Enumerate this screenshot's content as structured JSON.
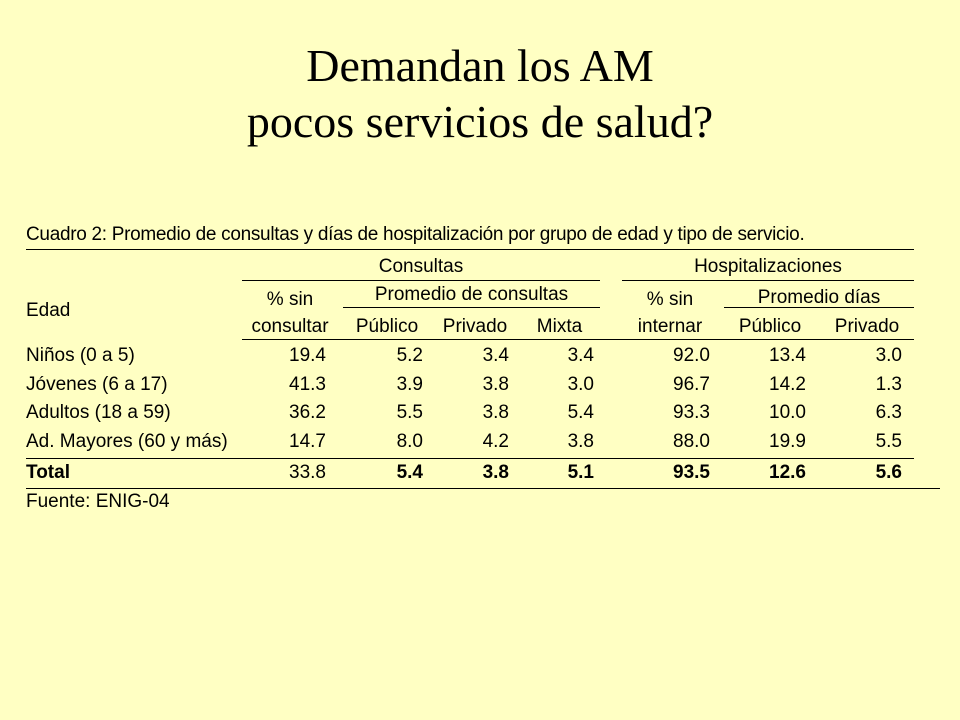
{
  "slide": {
    "title_line1": "Demandan los AM",
    "title_line2": "pocos servicios de salud?"
  },
  "table": {
    "caption": "Cuadro 2:  Promedio de consultas y días de hospitalización por grupo de edad y tipo de servicio.",
    "group_consultas": "Consultas",
    "group_hospitalizaciones": "Hospitalizaciones",
    "sub_promedio_consultas": "Promedio de consultas",
    "sub_promedio_dias": "Promedio días",
    "col_edad": "Edad",
    "col_sin_consultar_1": "% sin",
    "col_sin_consultar_2": "consultar",
    "col_sin_internar_1": "% sin",
    "col_sin_internar_2": "internar",
    "col_publico": "Público",
    "col_privado": "Privado",
    "col_mixta": "Mixta",
    "col_hosp_publico": "Público",
    "col_hosp_privado": "Privado",
    "rows": [
      {
        "label": "Niños (0 a 5)",
        "values": [
          "19.4",
          "5.2",
          "3.4",
          "3.4",
          "92.0",
          "13.4",
          "3.0"
        ]
      },
      {
        "label": "Jóvenes (6 a 17)",
        "values": [
          "41.3",
          "3.9",
          "3.8",
          "3.0",
          "96.7",
          "14.2",
          "1.3"
        ]
      },
      {
        "label": "Adultos (18 a 59)",
        "values": [
          "36.2",
          "5.5",
          "3.8",
          "5.4",
          "93.3",
          "10.0",
          "6.3"
        ]
      },
      {
        "label": "Ad. Mayores (60 y más)",
        "values": [
          "14.7",
          "8.0",
          "4.2",
          "3.8",
          "88.0",
          "19.9",
          "5.5"
        ]
      }
    ],
    "total": {
      "label": "Total",
      "values": [
        "33.8",
        "5.4",
        "3.8",
        "5.1",
        "93.5",
        "12.6",
        "5.6"
      ]
    },
    "source": "Fuente: ENIG-04"
  }
}
